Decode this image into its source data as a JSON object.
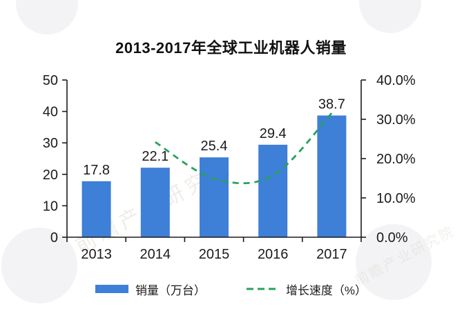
{
  "title": "2013-2017年全球工业机器人销量",
  "watermark": {
    "diagonal_text": "前瞻产业研究院",
    "corner_text": "前瞻"
  },
  "chart_data": {
    "type": "bar",
    "title": "2013-2017年全球工业机器人销量",
    "categories": [
      "2013",
      "2014",
      "2015",
      "2016",
      "2017"
    ],
    "series": [
      {
        "name": "销量（万台）",
        "type": "bar",
        "axis": "left",
        "values": [
          17.8,
          22.1,
          25.4,
          29.4,
          38.7
        ],
        "data_labels": [
          "17.8",
          "22.1",
          "25.4",
          "29.4",
          "38.7"
        ],
        "color": "#3e7fd7"
      },
      {
        "name": "增长速度（%）",
        "type": "line",
        "axis": "right",
        "dashed": true,
        "smooth": true,
        "values": [
          null,
          24.2,
          14.9,
          15.7,
          31.6
        ],
        "color": "#25a25a"
      }
    ],
    "left_axis": {
      "min": 0,
      "max": 50,
      "ticks": [
        0,
        10,
        20,
        30,
        40,
        50
      ],
      "tick_labels": [
        "0",
        "10",
        "20",
        "30",
        "40",
        "50"
      ]
    },
    "right_axis": {
      "min": 0,
      "max": 40,
      "ticks": [
        0,
        10,
        20,
        30,
        40
      ],
      "tick_labels": [
        "0.0%",
        "10.0%",
        "20.0%",
        "30.0%",
        "40.0%"
      ]
    },
    "grid": false,
    "legend_position": "bottom",
    "axis_color": "#1a1a1a",
    "text_color": "#1a1a1a"
  }
}
